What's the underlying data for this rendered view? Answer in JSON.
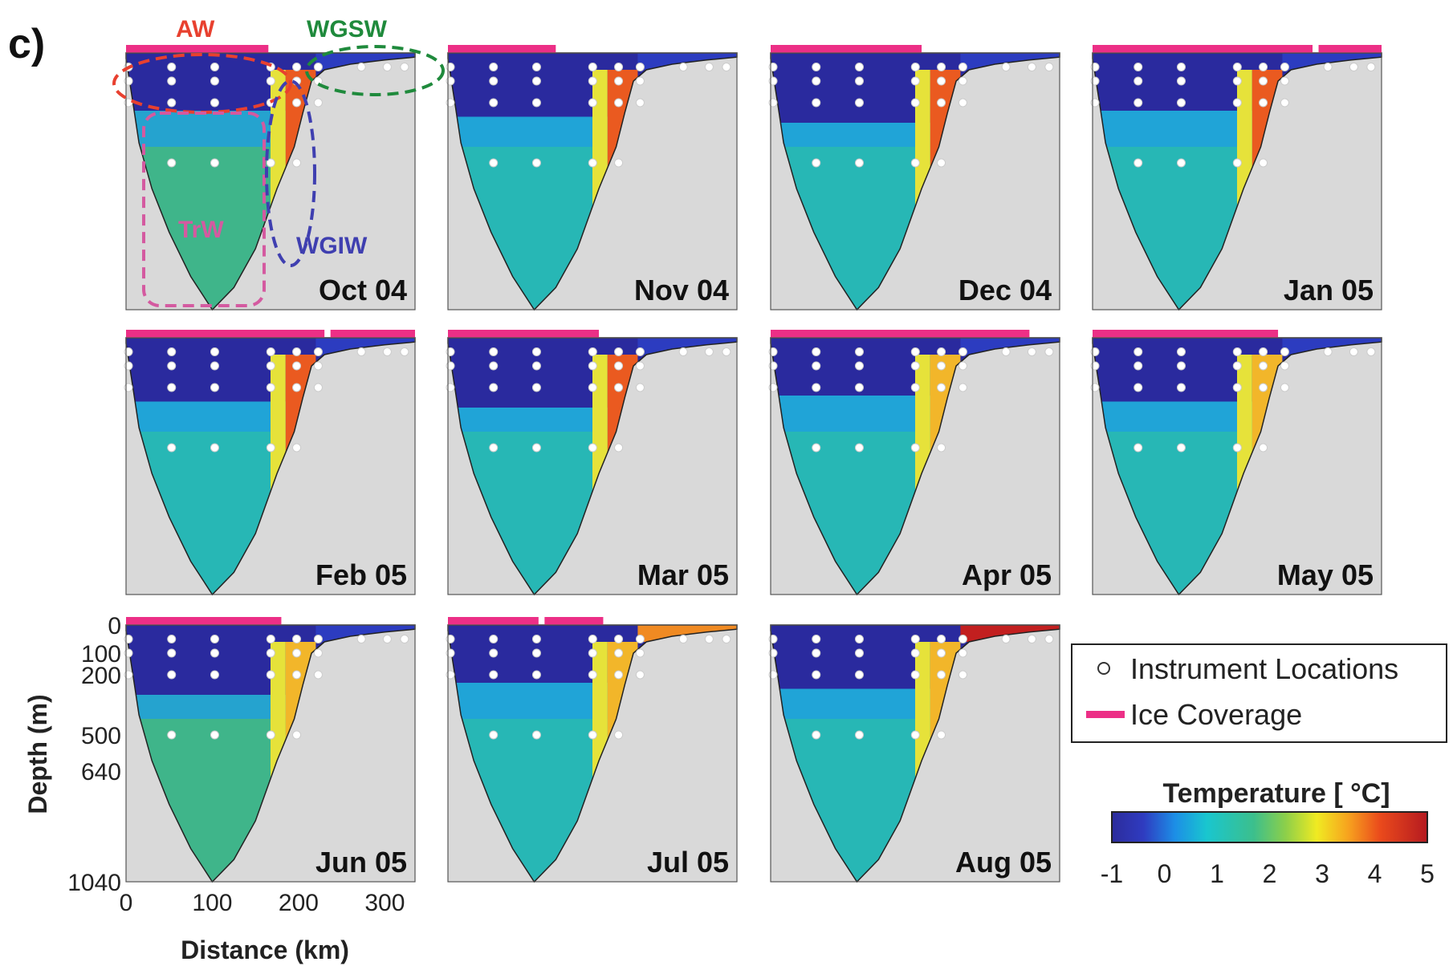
{
  "figure_label": "c)",
  "chart_data": {
    "type": "heatmap",
    "panels": [
      "Oct 04",
      "Nov 04",
      "Dec 04",
      "Jan 05",
      "Feb 05",
      "Mar 05",
      "Apr 05",
      "May 05",
      "Jun 05",
      "Jul 05",
      "Aug 05"
    ],
    "xlabel": "Distance (km)",
    "ylabel": "Depth (m)",
    "x_ticks": [
      0,
      100,
      200,
      300
    ],
    "y_ticks": [
      0,
      100,
      200,
      500,
      640,
      1040
    ],
    "xlim": [
      0,
      335
    ],
    "ylim": [
      1040,
      0
    ],
    "ice_coverage": [
      [
        [
          0,
          165
        ]
      ],
      [
        [
          0,
          125
        ]
      ],
      [
        [
          0,
          175
        ]
      ],
      [
        [
          0,
          255
        ],
        [
          262,
          335
        ]
      ],
      [
        [
          0,
          230
        ],
        [
          237,
          335
        ]
      ],
      [
        [
          0,
          175
        ]
      ],
      [
        [
          0,
          300
        ]
      ],
      [
        [
          0,
          215
        ]
      ],
      [
        [
          0,
          180
        ]
      ],
      [
        [
          0,
          105
        ],
        [
          112,
          180
        ]
      ],
      []
    ],
    "instrument_depths": [
      50,
      100,
      200,
      500
    ],
    "instrument_distances": [
      0,
      50,
      100,
      165,
      195,
      220,
      270,
      300,
      320
    ],
    "water_masses": [
      {
        "label": "AW",
        "color": "#e8402f"
      },
      {
        "label": "WGSW",
        "color": "#1f8a3c"
      },
      {
        "label": "TrW",
        "color": "#d45aa0"
      },
      {
        "label": "WGIW",
        "color": "#3f3fb0"
      }
    ],
    "legend": {
      "instrument": "Instrument Locations",
      "ice": "Ice Coverage",
      "colorbar_title": "Temperature [ °C]",
      "colorbar_ticks": [
        "-1",
        "0",
        "1",
        "2",
        "3",
        "4",
        "5"
      ],
      "colorbar_range": [
        -1,
        5
      ]
    },
    "colors": {
      "ice": "#ec2f86",
      "land": "#d9d9d9",
      "cold": "#2a2a9e",
      "mid": "#22b8c4",
      "warm": "#e22a1a"
    }
  }
}
